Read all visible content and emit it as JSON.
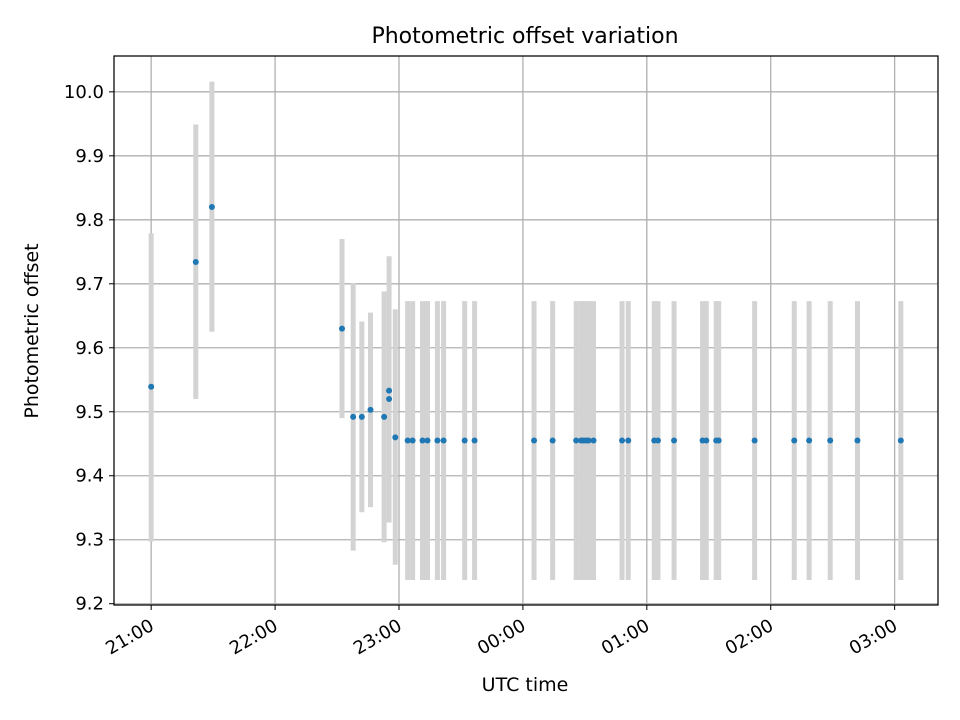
{
  "chart_data": {
    "type": "scatter",
    "title": "Photometric offset variation",
    "xlabel": "UTC time",
    "ylabel": "Photometric offset",
    "x_unit": "hours relative to 00:00 UTC",
    "xlim": [
      -3.3,
      3.35
    ],
    "ylim": [
      9.198,
      10.056
    ],
    "x_ticks": [
      -3,
      -2,
      -1,
      0,
      1,
      2,
      3
    ],
    "x_tick_labels": [
      "21:00",
      "22:00",
      "23:00",
      "00:00",
      "01:00",
      "02:00",
      "03:00"
    ],
    "y_ticks": [
      9.2,
      9.3,
      9.4,
      9.5,
      9.6,
      9.7,
      9.8,
      9.9,
      10.0
    ],
    "y_tick_labels": [
      "9.2",
      "9.3",
      "9.4",
      "9.5",
      "9.6",
      "9.7",
      "9.8",
      "9.9",
      "10.0"
    ],
    "grid": true,
    "colors": {
      "point": "#1f77b4",
      "errorbar": "#d3d3d3",
      "grid": "#b0b0b0"
    },
    "points": [
      {
        "x": -3.0,
        "y": 9.539,
        "lo": 9.297,
        "hi": 9.779
      },
      {
        "x": -2.64,
        "y": 9.734,
        "lo": 9.52,
        "hi": 9.949
      },
      {
        "x": -2.51,
        "y": 9.82,
        "lo": 9.625,
        "hi": 10.016
      },
      {
        "x": -1.46,
        "y": 9.63,
        "lo": 9.49,
        "hi": 9.77
      },
      {
        "x": -1.37,
        "y": 9.492,
        "lo": 9.283,
        "hi": 9.701
      },
      {
        "x": -1.3,
        "y": 9.492,
        "lo": 9.343,
        "hi": 9.641
      },
      {
        "x": -1.23,
        "y": 9.503,
        "lo": 9.351,
        "hi": 9.655
      },
      {
        "x": -1.12,
        "y": 9.492,
        "lo": 9.296,
        "hi": 9.688
      },
      {
        "x": -1.08,
        "y": 9.533,
        "lo": 9.327,
        "hi": 9.743
      },
      {
        "x": -1.08,
        "y": 9.52,
        "lo": 9.5,
        "hi": 9.54
      },
      {
        "x": -1.03,
        "y": 9.46,
        "lo": 9.261,
        "hi": 9.66
      },
      {
        "x": -0.93,
        "y": 9.455,
        "lo": 9.237,
        "hi": 9.673
      },
      {
        "x": -0.89,
        "y": 9.455,
        "lo": 9.237,
        "hi": 9.673
      },
      {
        "x": -0.81,
        "y": 9.455,
        "lo": 9.237,
        "hi": 9.673
      },
      {
        "x": -0.77,
        "y": 9.455,
        "lo": 9.237,
        "hi": 9.673
      },
      {
        "x": -0.69,
        "y": 9.455,
        "lo": 9.237,
        "hi": 9.673
      },
      {
        "x": -0.64,
        "y": 9.455,
        "lo": 9.237,
        "hi": 9.673
      },
      {
        "x": -0.47,
        "y": 9.455,
        "lo": 9.237,
        "hi": 9.673
      },
      {
        "x": -0.39,
        "y": 9.455,
        "lo": 9.237,
        "hi": 9.673
      },
      {
        "x": 0.09,
        "y": 9.455,
        "lo": 9.237,
        "hi": 9.673
      },
      {
        "x": 0.24,
        "y": 9.455,
        "lo": 9.237,
        "hi": 9.673
      },
      {
        "x": 0.43,
        "y": 9.455,
        "lo": 9.237,
        "hi": 9.673
      },
      {
        "x": 0.47,
        "y": 9.455,
        "lo": 9.237,
        "hi": 9.673
      },
      {
        "x": 0.49,
        "y": 9.455,
        "lo": 9.237,
        "hi": 9.673
      },
      {
        "x": 0.51,
        "y": 9.455,
        "lo": 9.237,
        "hi": 9.673
      },
      {
        "x": 0.53,
        "y": 9.455,
        "lo": 9.237,
        "hi": 9.673
      },
      {
        "x": 0.57,
        "y": 9.455,
        "lo": 9.237,
        "hi": 9.673
      },
      {
        "x": 0.8,
        "y": 9.455,
        "lo": 9.237,
        "hi": 9.673
      },
      {
        "x": 0.85,
        "y": 9.455,
        "lo": 9.237,
        "hi": 9.673
      },
      {
        "x": 1.06,
        "y": 9.455,
        "lo": 9.237,
        "hi": 9.673
      },
      {
        "x": 1.09,
        "y": 9.455,
        "lo": 9.237,
        "hi": 9.673
      },
      {
        "x": 1.22,
        "y": 9.455,
        "lo": 9.237,
        "hi": 9.673
      },
      {
        "x": 1.45,
        "y": 9.455,
        "lo": 9.237,
        "hi": 9.673
      },
      {
        "x": 1.48,
        "y": 9.455,
        "lo": 9.237,
        "hi": 9.673
      },
      {
        "x": 1.56,
        "y": 9.455,
        "lo": 9.237,
        "hi": 9.673
      },
      {
        "x": 1.58,
        "y": 9.455,
        "lo": 9.237,
        "hi": 9.673
      },
      {
        "x": 1.87,
        "y": 9.455,
        "lo": 9.237,
        "hi": 9.673
      },
      {
        "x": 2.19,
        "y": 9.455,
        "lo": 9.237,
        "hi": 9.673
      },
      {
        "x": 2.31,
        "y": 9.455,
        "lo": 9.237,
        "hi": 9.673
      },
      {
        "x": 2.48,
        "y": 9.455,
        "lo": 9.237,
        "hi": 9.673
      },
      {
        "x": 2.7,
        "y": 9.455,
        "lo": 9.237,
        "hi": 9.673
      },
      {
        "x": 3.05,
        "y": 9.455,
        "lo": 9.237,
        "hi": 9.673
      }
    ]
  }
}
